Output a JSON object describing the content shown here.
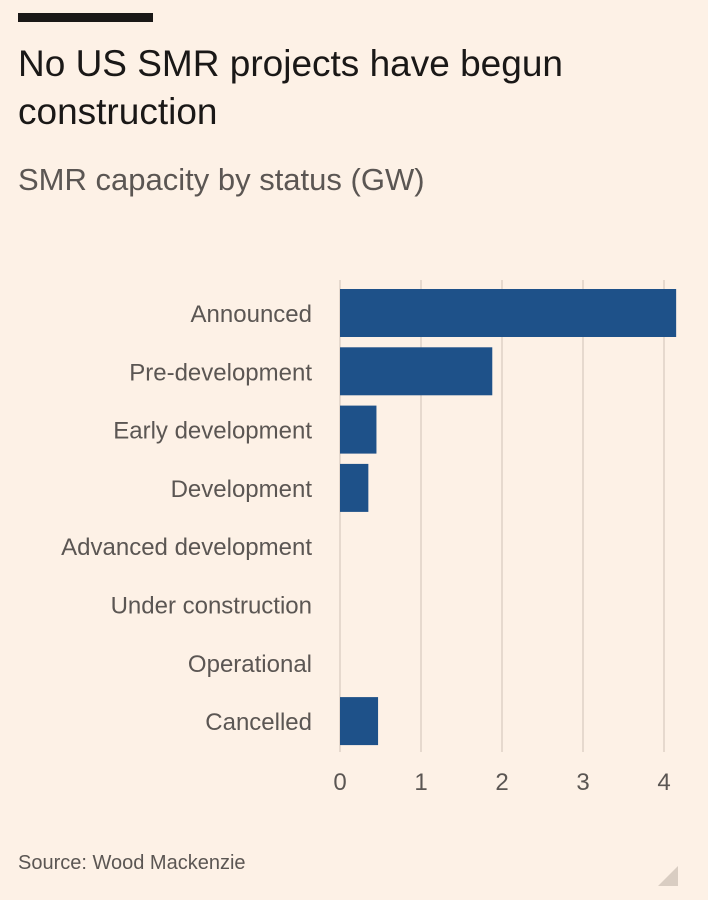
{
  "header": {
    "title": "No US SMR projects have begun construction",
    "subtitle": "SMR capacity by status (GW)"
  },
  "footer": {
    "source": "Source: Wood Mackenzie"
  },
  "colors": {
    "background": "#fdf1e6",
    "bar": "#1e5189",
    "gridline": "#e6d9ce",
    "text": "#5b5653"
  },
  "chart_data": {
    "type": "bar",
    "orientation": "horizontal",
    "title": "No US SMR projects have begun construction",
    "subtitle": "SMR capacity by status (GW)",
    "categories": [
      "Announced",
      "Pre-development",
      "Early development",
      "Development",
      "Advanced development",
      "Under construction",
      "Operational",
      "Cancelled"
    ],
    "values": [
      4.15,
      1.88,
      0.45,
      0.35,
      0,
      0,
      0,
      0.47
    ],
    "xlim": [
      0,
      4.2
    ],
    "xticks": [
      0,
      1,
      2,
      3,
      4
    ],
    "grid": true,
    "legend": "none",
    "source": "Source: Wood Mackenzie"
  }
}
